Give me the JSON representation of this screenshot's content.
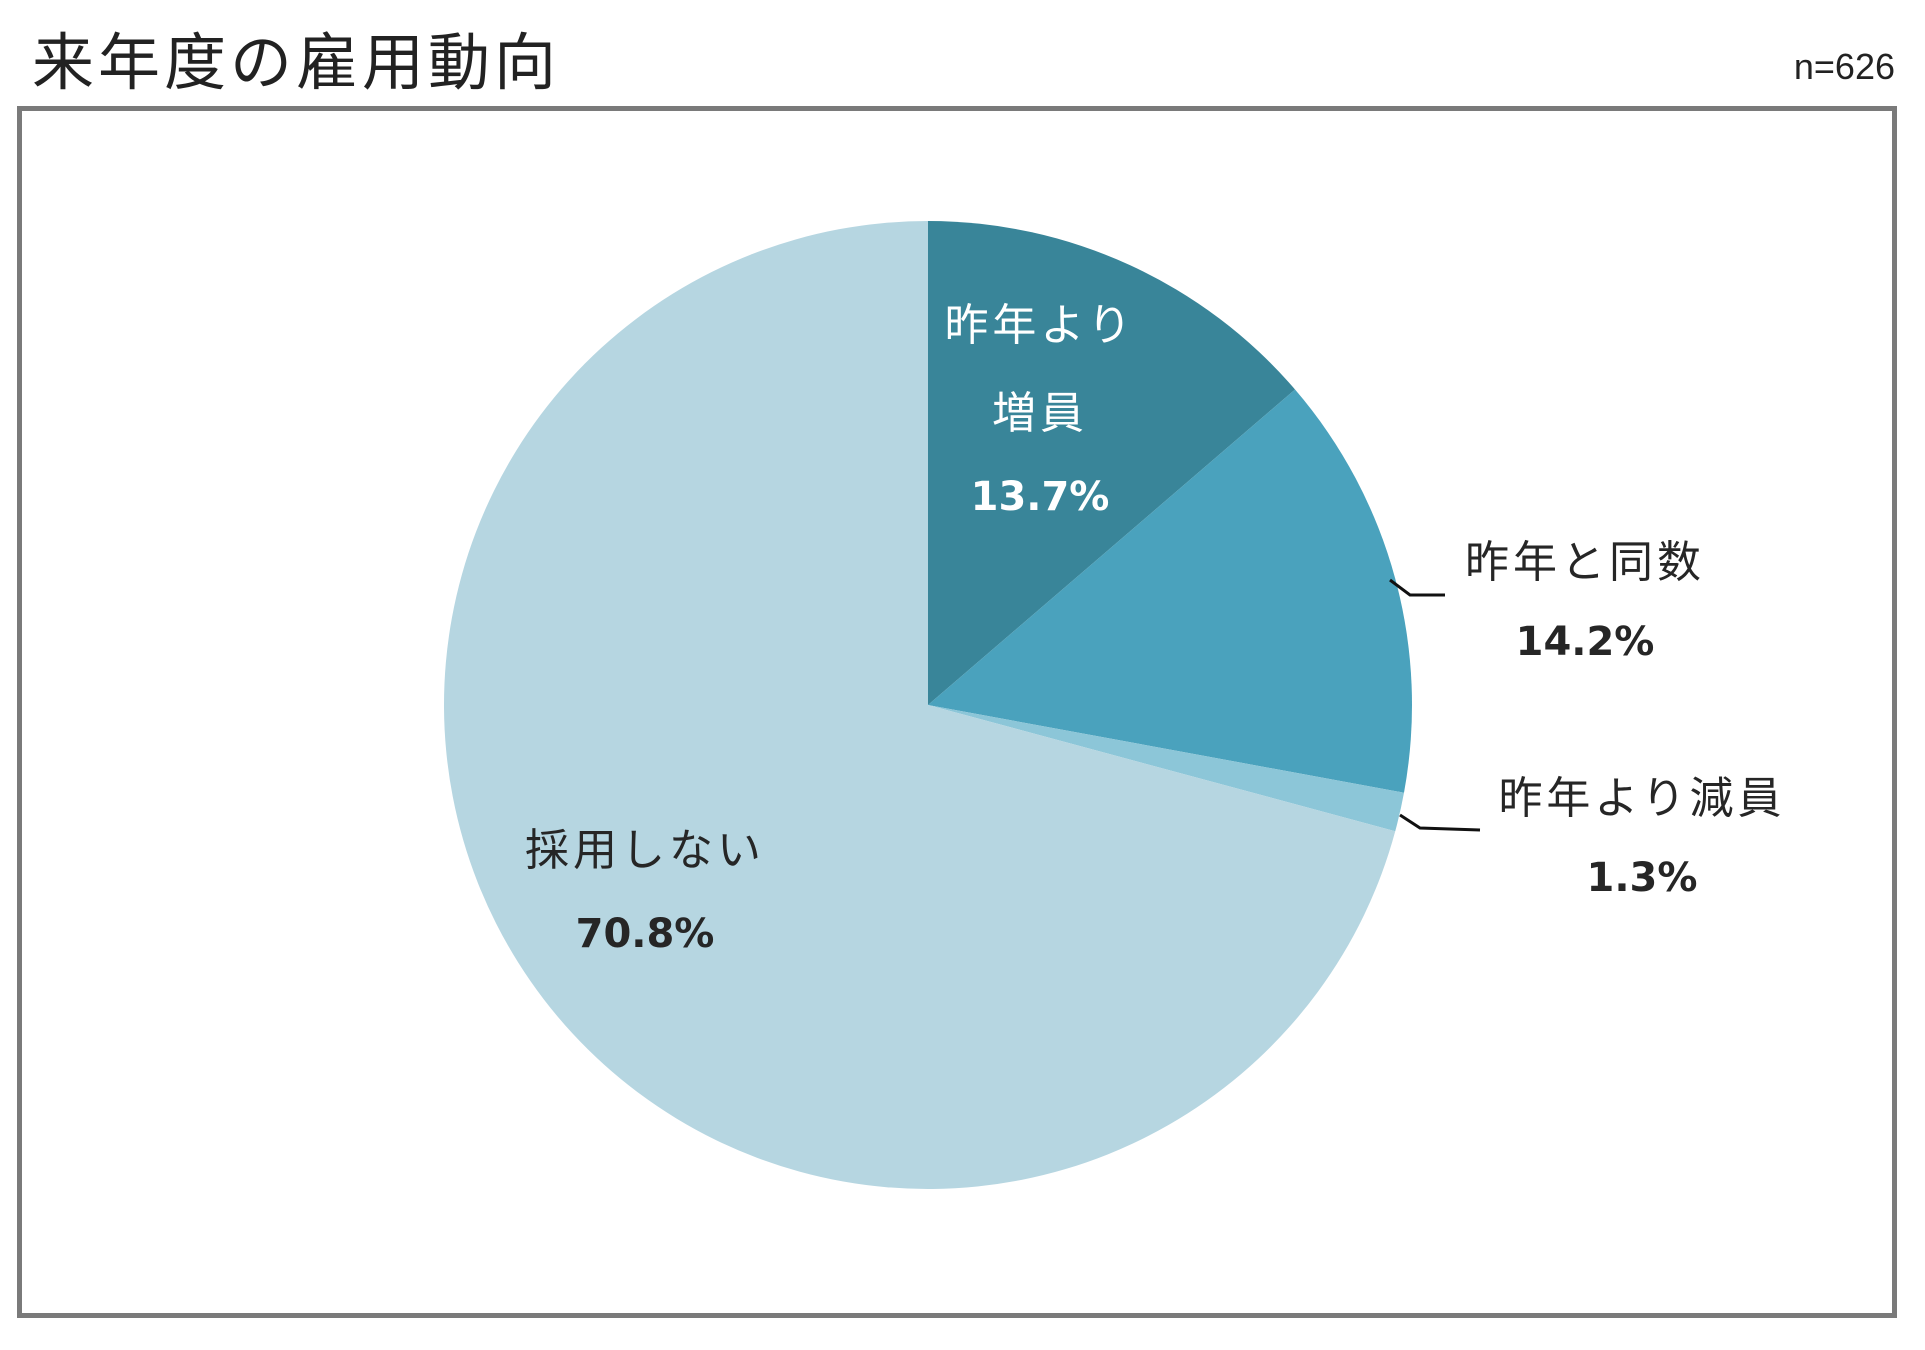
{
  "title": "来年度の雇用動向",
  "sample_size": "n=626",
  "chart_data": {
    "type": "pie",
    "title": "来年度の雇用動向",
    "note": "n=626",
    "start_angle_deg": 0,
    "direction": "clockwise",
    "slices": [
      {
        "name_lines": [
          "昨年より",
          "増員"
        ],
        "value": 13.7,
        "value_label": "13.7%",
        "color": "#398599",
        "label_color": "#ffffff",
        "label_inside": true
      },
      {
        "name_lines": [
          "昨年と同数"
        ],
        "value": 14.2,
        "value_label": "14.2%",
        "color": "#4aa2bd",
        "label_color": "#262626",
        "label_inside": false
      },
      {
        "name_lines": [
          "昨年より減員"
        ],
        "value": 1.3,
        "value_label": "1.3%",
        "color": "#8cc6d8",
        "label_color": "#262626",
        "label_inside": false
      },
      {
        "name_lines": [
          "採用しない"
        ],
        "value": 70.8,
        "value_label": "70.8%",
        "color": "#b6d6e1",
        "label_color": "#262626",
        "label_inside": true
      }
    ]
  }
}
